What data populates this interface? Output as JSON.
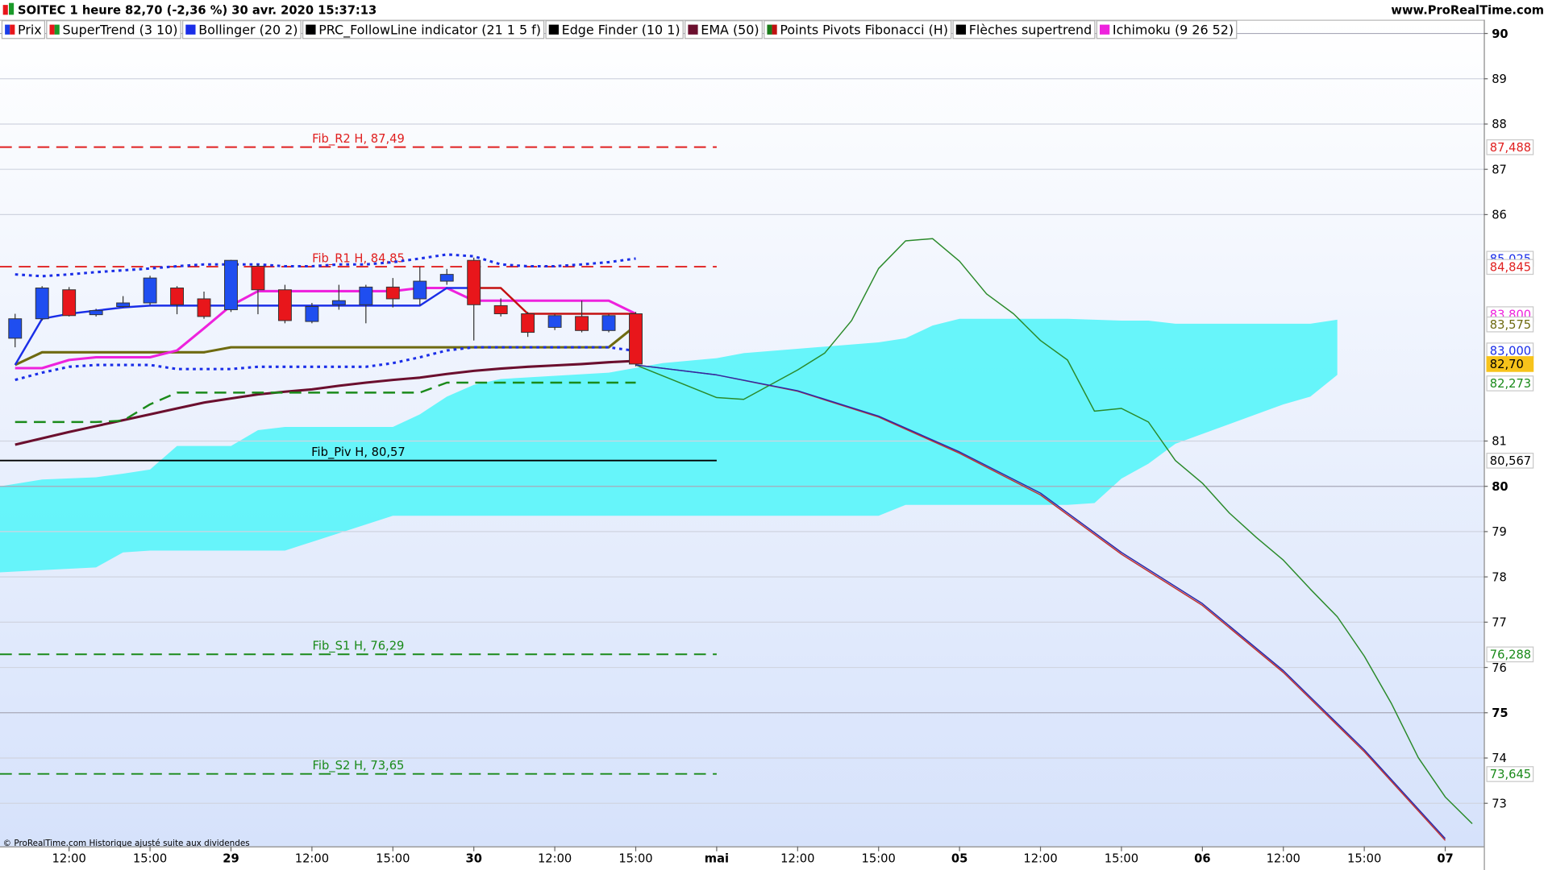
{
  "chart_data": {
    "type": "candlestick",
    "title": "SOITEC 1 heure 82,70 (-2,36 %) 30 avr. 2020 15:37:13",
    "watermark": "www.ProRealTime.com",
    "footer": "© ProRealTime.com Historique ajusté suite aux dividendes",
    "legend": [
      {
        "name": "Prix",
        "colors": [
          "#1a3ee8",
          "#e8161b"
        ]
      },
      {
        "name": "SuperTrend (3 10)",
        "colors": [
          "#e8161b",
          "#1a9a2a"
        ]
      },
      {
        "name": "Bollinger (20 2)",
        "colors": [
          "#1a2ee8"
        ]
      },
      {
        "name": "PRC_FollowLine indicator (21 1 5 f)",
        "colors": [
          "#000000"
        ]
      },
      {
        "name": "Edge Finder (10 1)",
        "colors": [
          "#000000"
        ]
      },
      {
        "name": "EMA (50)",
        "colors": [
          "#6b0f2e"
        ]
      },
      {
        "name": "Points Pivots Fibonacci (H)",
        "colors": [
          "#1a7a1a",
          "#c01010"
        ]
      },
      {
        "name": "Flèches supertrend",
        "colors": [
          "#000000"
        ]
      },
      {
        "name": "Ichimoku (9 26 52)",
        "colors": [
          "#ee22dd"
        ]
      }
    ],
    "xlim": [
      -2.56,
      52.43
    ],
    "ylim": [
      72.05,
      90.26
    ],
    "yticks": [
      73,
      74,
      75,
      76,
      77,
      78,
      79,
      80,
      81,
      86,
      87,
      88,
      89,
      90
    ],
    "xticks": [
      {
        "value": 0,
        "label": "12:00"
      },
      {
        "value": 3,
        "label": "15:00"
      },
      {
        "value": 6,
        "label": "29"
      },
      {
        "value": 9,
        "label": "12:00"
      },
      {
        "value": 12,
        "label": "15:00"
      },
      {
        "value": 15,
        "label": "30"
      },
      {
        "value": 18,
        "label": "12:00"
      },
      {
        "value": 21,
        "label": "15:00"
      },
      {
        "value": 24,
        "label": "mai"
      },
      {
        "value": 27,
        "label": "12:00"
      },
      {
        "value": 30,
        "label": "15:00"
      },
      {
        "value": 33,
        "label": "05"
      },
      {
        "value": 36,
        "label": "12:00"
      },
      {
        "value": 39,
        "label": "15:00"
      },
      {
        "value": 42,
        "label": "06"
      },
      {
        "value": 45,
        "label": "12:00"
      },
      {
        "value": 48,
        "label": "15:00"
      },
      {
        "value": 51,
        "label": "07"
      }
    ],
    "grid": true,
    "up_color": "#1f4ef0",
    "down_color": "#e8161b",
    "candles": {
      "x": [
        -2,
        -1,
        0,
        1,
        2,
        3,
        4,
        5,
        6,
        7,
        8,
        9,
        10,
        11,
        12,
        13,
        14,
        15,
        16,
        17,
        18,
        19,
        20,
        21
      ],
      "open": [
        83.27,
        83.7,
        84.34,
        83.79,
        83.97,
        84.05,
        84.38,
        84.14,
        83.9,
        84.86,
        84.34,
        83.64,
        84.01,
        84.01,
        84.4,
        84.14,
        84.53,
        84.99,
        83.99,
        83.81,
        83.51,
        83.75,
        83.44,
        83.81
      ],
      "high": [
        83.81,
        84.42,
        84.4,
        83.92,
        84.2,
        84.65,
        84.42,
        84.3,
        85.0,
        84.9,
        84.45,
        84.05,
        84.45,
        84.45,
        84.6,
        84.85,
        84.8,
        85.05,
        84.15,
        83.85,
        83.8,
        84.1,
        83.8,
        83.85
      ],
      "low": [
        83.07,
        83.66,
        83.75,
        83.75,
        83.95,
        84.0,
        83.8,
        83.7,
        83.85,
        83.8,
        83.6,
        83.6,
        83.9,
        83.6,
        83.95,
        84.0,
        84.45,
        83.22,
        83.75,
        83.3,
        83.45,
        83.4,
        83.4,
        82.65
      ],
      "close": [
        83.7,
        84.38,
        83.77,
        83.88,
        84.05,
        84.6,
        84.01,
        83.75,
        84.99,
        84.34,
        83.66,
        83.97,
        84.1,
        84.4,
        84.14,
        84.53,
        84.68,
        84.01,
        83.81,
        83.4,
        83.77,
        83.44,
        83.77,
        82.7
      ]
    },
    "cloud": {
      "color": "#5ff4fa",
      "x": [
        -2.56,
        -1,
        1,
        2,
        3,
        4,
        6,
        7,
        8,
        12,
        13,
        14,
        15,
        16,
        20,
        22,
        24,
        25,
        30,
        31,
        32,
        33,
        37,
        38,
        39,
        40,
        41,
        45,
        46,
        47
      ],
      "upper": [
        80.0,
        80.15,
        80.2,
        80.28,
        80.37,
        80.89,
        80.89,
        81.24,
        81.31,
        81.31,
        81.59,
        81.98,
        82.24,
        82.37,
        82.51,
        82.72,
        82.83,
        82.94,
        83.18,
        83.27,
        83.55,
        83.7,
        83.7,
        83.68,
        83.66,
        83.66,
        83.59,
        83.59,
        83.59,
        83.68
      ],
      "lower": [
        78.1,
        78.15,
        78.21,
        78.54,
        78.58,
        78.58,
        78.58,
        78.58,
        78.58,
        79.35,
        79.35,
        79.35,
        79.35,
        79.35,
        79.35,
        79.35,
        79.35,
        79.35,
        79.35,
        79.59,
        79.59,
        79.59,
        79.59,
        79.63,
        80.17,
        80.5,
        80.94,
        81.81,
        81.98,
        82.46
      ]
    },
    "lines": [
      {
        "color": "#6b0f2e",
        "dash": "solid",
        "width": 2.5,
        "x": [
          -2,
          -1,
          0,
          1,
          2,
          3,
          4,
          5,
          6,
          7,
          8,
          9,
          10,
          11,
          12,
          13,
          14,
          15,
          16,
          17,
          18,
          19,
          20,
          21
        ],
        "values": [
          80.92,
          81.06,
          81.2,
          81.33,
          81.46,
          81.59,
          81.72,
          81.85,
          81.94,
          82.03,
          82.09,
          82.14,
          82.22,
          82.29,
          82.35,
          82.4,
          82.48,
          82.55,
          82.6,
          82.64,
          82.67,
          82.7,
          82.74,
          82.77
        ]
      },
      {
        "color": "#1a8a1a",
        "dash": "dashed",
        "width": 2,
        "x": [
          -2,
          -1,
          0,
          1,
          2,
          3,
          4,
          5,
          6,
          7,
          8,
          9,
          10,
          11,
          12,
          13,
          14,
          15,
          16,
          17,
          18,
          19,
          20,
          21
        ],
        "values": [
          81.42,
          81.42,
          81.42,
          81.42,
          81.45,
          81.81,
          82.07,
          82.07,
          82.07,
          82.07,
          82.07,
          82.07,
          82.07,
          82.07,
          82.07,
          82.07,
          82.29,
          82.29,
          82.29,
          82.29,
          82.29,
          82.29,
          82.29,
          82.29
        ]
      },
      {
        "color": "#6e6a10",
        "dash": "solid",
        "width": 2.5,
        "x": [
          -2,
          -1,
          0,
          1,
          2,
          3,
          4,
          5,
          6,
          7,
          8,
          9,
          10,
          11,
          12,
          13,
          14,
          15,
          16,
          17,
          18,
          19,
          20,
          21
        ],
        "values": [
          82.68,
          82.96,
          82.96,
          82.96,
          82.96,
          82.96,
          82.96,
          82.96,
          83.07,
          83.07,
          83.07,
          83.07,
          83.07,
          83.07,
          83.07,
          83.07,
          83.07,
          83.07,
          83.07,
          83.07,
          83.07,
          83.07,
          83.07,
          83.55
        ]
      },
      {
        "color": "#1a2ee8",
        "dash": "dotted",
        "width": 2.5,
        "x": [
          -2,
          -1,
          0,
          1,
          2,
          3,
          4,
          5,
          6,
          7,
          8,
          9,
          10,
          11,
          12,
          13,
          14,
          15,
          16,
          17,
          18,
          19,
          20,
          21
        ],
        "values": [
          84.68,
          84.64,
          84.68,
          84.73,
          84.77,
          84.81,
          84.86,
          84.9,
          84.9,
          84.9,
          84.86,
          84.86,
          84.9,
          84.9,
          84.95,
          85.03,
          85.12,
          85.08,
          84.9,
          84.86,
          84.86,
          84.9,
          84.95,
          85.03
        ]
      },
      {
        "color": "#1a2ee8",
        "dash": "dotted",
        "width": 2.5,
        "x": [
          -2,
          -1,
          0,
          1,
          2,
          3,
          4,
          5,
          6,
          7,
          8,
          9,
          10,
          11,
          12,
          13,
          14,
          15,
          16,
          17,
          18,
          19,
          20,
          21
        ],
        "values": [
          82.35,
          82.51,
          82.64,
          82.68,
          82.68,
          82.68,
          82.59,
          82.59,
          82.59,
          82.64,
          82.64,
          82.64,
          82.64,
          82.64,
          82.72,
          82.85,
          83.0,
          83.07,
          83.07,
          83.07,
          83.07,
          83.07,
          83.07,
          82.99
        ]
      },
      {
        "color": "#ee22dd",
        "dash": "solid",
        "width": 2.5,
        "x": [
          -2,
          -1,
          0,
          1,
          2,
          3,
          4,
          5,
          6,
          7,
          8,
          9,
          10,
          11,
          12,
          13,
          14,
          15,
          16,
          17,
          18,
          19,
          20,
          21
        ],
        "values": [
          82.61,
          82.61,
          82.79,
          82.85,
          82.85,
          82.85,
          83.0,
          83.49,
          83.99,
          84.31,
          84.31,
          84.31,
          84.31,
          84.31,
          84.31,
          84.38,
          84.38,
          84.1,
          84.1,
          84.1,
          84.1,
          84.1,
          84.1,
          83.81
        ]
      },
      {
        "color": "#1a2ee8",
        "dash": "solid",
        "width": 2,
        "x": [
          -2,
          -1,
          0,
          1,
          2,
          3,
          4,
          5,
          6,
          7,
          8,
          9,
          10,
          11,
          12,
          13,
          14,
          15
        ],
        "values": [
          82.68,
          83.7,
          83.81,
          83.88,
          83.95,
          83.99,
          83.99,
          83.99,
          83.99,
          83.99,
          83.99,
          83.99,
          83.99,
          83.99,
          83.99,
          83.99,
          84.38,
          84.38
        ]
      },
      {
        "color": "#c41010",
        "dash": "solid",
        "width": 2,
        "x": [
          15,
          16,
          17,
          18,
          19,
          20,
          21
        ],
        "values": [
          84.38,
          84.38,
          83.81,
          83.81,
          83.81,
          83.81,
          83.81
        ]
      },
      {
        "color": "#2a8a2a",
        "dash": "solid",
        "width": 1.2,
        "x": [
          21,
          24,
          25,
          27,
          28,
          29,
          30,
          31,
          32,
          33,
          34,
          35,
          36,
          37,
          38,
          39,
          40,
          41,
          42,
          43,
          44,
          45,
          46,
          47,
          48,
          49,
          50,
          51,
          52
        ],
        "values": [
          82.68,
          81.96,
          81.92,
          82.57,
          82.94,
          83.66,
          84.81,
          85.42,
          85.47,
          84.97,
          84.25,
          83.81,
          83.22,
          82.79,
          81.66,
          81.72,
          81.42,
          80.57,
          80.07,
          79.41,
          78.87,
          78.37,
          77.73,
          77.12,
          76.25,
          75.21,
          74.01,
          73.14,
          72.55
        ]
      },
      {
        "color": "#c03030",
        "dash": "solid",
        "width": 1.2,
        "x": [
          21,
          24,
          27,
          30,
          33,
          36,
          39,
          42,
          45,
          48,
          51
        ],
        "values": [
          82.68,
          82.46,
          82.1,
          81.53,
          80.73,
          79.81,
          78.5,
          77.37,
          75.89,
          74.14,
          72.18
        ]
      },
      {
        "color": "#2a2aa8",
        "dash": "solid",
        "width": 1.2,
        "x": [
          21,
          24,
          27,
          30,
          33,
          36,
          39,
          42,
          45,
          48,
          51
        ],
        "values": [
          82.68,
          82.46,
          82.11,
          81.55,
          80.76,
          79.85,
          78.54,
          77.41,
          75.93,
          74.18,
          72.22
        ]
      }
    ],
    "fib_x": [
      -2.56,
      24
    ],
    "fib_levels": [
      {
        "label": "Fib_R2 H, 87,49",
        "value": 87.49,
        "color": "#e02020",
        "dash": "dashed"
      },
      {
        "label": "Fib_R1 H, 84,85",
        "value": 84.85,
        "color": "#e02020",
        "dash": "dashed"
      },
      {
        "label": "Fib_Piv H, 80,57",
        "value": 80.57,
        "color": "#000000",
        "dash": "solid"
      },
      {
        "label": "Fib_S1 H, 76,29",
        "value": 76.29,
        "color": "#1a8a1a",
        "dash": "dashed"
      },
      {
        "label": "Fib_S2 H, 73,65",
        "value": 73.65,
        "color": "#1a8a1a",
        "dash": "dashed"
      }
    ],
    "price_labels": [
      {
        "value": 87.488,
        "label": "87,488",
        "color": "#e02020",
        "background": "#ffffff"
      },
      {
        "value": 85.025,
        "label": "85,025",
        "color": "#1a2ee8",
        "background": "#ffffff"
      },
      {
        "value": 84.845,
        "label": "84,845",
        "color": "#e02020",
        "background": "#ffffff"
      },
      {
        "value": 83.8,
        "label": "83,800",
        "color": "#ee22dd",
        "background": "#ffffff"
      },
      {
        "value": 83.575,
        "label": "83,575",
        "color": "#6e6a10",
        "background": "#ffffff"
      },
      {
        "value": 83.0,
        "label": "83,000",
        "color": "#1a2ee8",
        "background": "#ffffff"
      },
      {
        "value": 82.7,
        "label": "82,70",
        "color": "#000000",
        "background": "#f7c31b"
      },
      {
        "value": 82.273,
        "label": "82,273",
        "color": "#1a8a1a",
        "background": "#ffffff"
      },
      {
        "value": 80.567,
        "label": "80,567",
        "color": "#000000",
        "background": "#ffffff"
      },
      {
        "value": 76.288,
        "label": "76,288",
        "color": "#1a8a1a",
        "background": "#ffffff"
      },
      {
        "value": 73.645,
        "label": "73,645",
        "color": "#1a8a1a",
        "background": "#ffffff"
      }
    ]
  }
}
